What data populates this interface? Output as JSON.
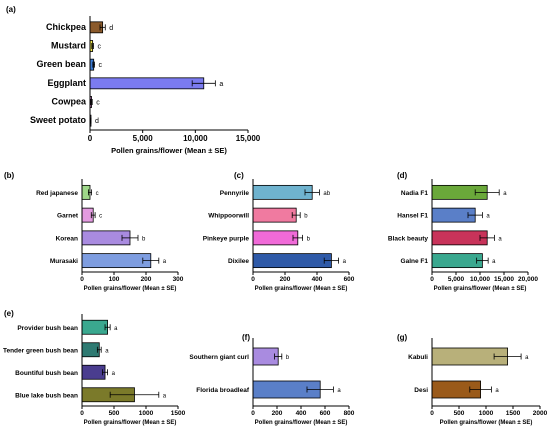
{
  "chart_data": [
    {
      "panel": "(a)",
      "type": "bar",
      "orientation": "horizontal",
      "categories": [
        "Chickpea",
        "Mustard",
        "Green bean",
        "Eggplant",
        "Cowpea",
        "Sweet potato"
      ],
      "values": [
        1200,
        250,
        350,
        10800,
        150,
        60
      ],
      "errors": [
        250,
        80,
        80,
        1100,
        60,
        30
      ],
      "sig": [
        "d",
        "c",
        "c",
        "a",
        "c",
        "d"
      ],
      "colors": [
        "#8b5a2b",
        "#f2e94e",
        "#3a7bd5",
        "#7b7bf0",
        "#d08acb",
        "#c9a9d6"
      ],
      "xlim": [
        0,
        15000
      ],
      "xticks": [
        "0",
        "5,000",
        "10,000",
        "15,000"
      ],
      "xtick_values": [
        0,
        5000,
        10000,
        15000
      ],
      "xlabel": "Pollen grains/flower (Mean ± SE)"
    },
    {
      "panel": "(b)",
      "type": "bar",
      "orientation": "horizontal",
      "categories": [
        "Red japanese",
        "Garnet",
        "Korean",
        "Murasaki"
      ],
      "values": [
        25,
        35,
        150,
        215
      ],
      "errors": [
        5,
        6,
        25,
        25
      ],
      "sig": [
        "c",
        "c",
        "b",
        "a"
      ],
      "colors": [
        "#9fd88a",
        "#e39be0",
        "#a98be0",
        "#7e9de0"
      ],
      "xlim": [
        0,
        300
      ],
      "xticks": [
        "0",
        "100",
        "200",
        "300"
      ],
      "xtick_values": [
        0,
        100,
        200,
        300
      ],
      "xlabel": "Pollen grains/flower (Mean ± SE)"
    },
    {
      "panel": "(c)",
      "type": "bar",
      "orientation": "horizontal",
      "categories": [
        "Pennyrile",
        "Whippoorwill",
        "Pinkeye purple",
        "Dixilee"
      ],
      "values": [
        370,
        270,
        280,
        490
      ],
      "errors": [
        45,
        25,
        30,
        45
      ],
      "sig": [
        "ab",
        "b",
        "b",
        "a"
      ],
      "colors": [
        "#6fb3cf",
        "#f07aa0",
        "#f06ad8",
        "#2f5aa8"
      ],
      "xlim": [
        0,
        600
      ],
      "xticks": [
        "0",
        "200",
        "400",
        "600"
      ],
      "xtick_values": [
        0,
        200,
        400,
        600
      ],
      "xlabel": "Pollen grains/flower (Mean ± SE)"
    },
    {
      "panel": "(d)",
      "type": "bar",
      "orientation": "horizontal",
      "categories": [
        "Nadia F1",
        "Hansel F1",
        "Black beauty",
        "Galne F1"
      ],
      "values": [
        11500,
        9000,
        11500,
        10500
      ],
      "errors": [
        2500,
        1500,
        1500,
        1200
      ],
      "sig": [
        "a",
        "a",
        "a",
        "a"
      ],
      "colors": [
        "#6aa83a",
        "#5a7fc8",
        "#c8335a",
        "#3aa88f"
      ],
      "xlim": [
        0,
        20000
      ],
      "xticks": [
        "0",
        "5,000",
        "10,000",
        "15,000",
        "20,000"
      ],
      "xtick_values": [
        0,
        5000,
        10000,
        15000,
        20000
      ],
      "xlabel": "Pollen grains/flower (Mean ± SE)"
    },
    {
      "panel": "(e)",
      "type": "bar",
      "orientation": "horizontal",
      "categories": [
        "Provider bush bean",
        "Tender green bush bean",
        "Bountiful bush bean",
        "Blue lake bush bean"
      ],
      "values": [
        400,
        270,
        360,
        820
      ],
      "errors": [
        40,
        30,
        40,
        380
      ],
      "sig": [
        "a",
        "a",
        "a",
        "a"
      ],
      "colors": [
        "#3aa88f",
        "#2e7a72",
        "#4a3d8f",
        "#7b7a2a"
      ],
      "xlim": [
        0,
        1500
      ],
      "xticks": [
        "0",
        "500",
        "1000",
        "1500"
      ],
      "xtick_values": [
        0,
        500,
        1000,
        1500
      ],
      "xlabel": "Pollen grains/flower (Mean ± SE)"
    },
    {
      "panel": "(f)",
      "type": "bar",
      "orientation": "horizontal",
      "categories": [
        "Southern giant curl",
        "Florida broadleaf"
      ],
      "values": [
        210,
        560
      ],
      "errors": [
        30,
        110
      ],
      "sig": [
        "b",
        "a"
      ],
      "colors": [
        "#a98be0",
        "#5a7fc8"
      ],
      "xlim": [
        0,
        800
      ],
      "xticks": [
        "0",
        "200",
        "400",
        "600",
        "800"
      ],
      "xtick_values": [
        0,
        200,
        400,
        600,
        800
      ],
      "xlabel": "Pollen grains/flower (Mean ± SE)"
    },
    {
      "panel": "(g)",
      "type": "bar",
      "orientation": "horizontal",
      "categories": [
        "Kabuli",
        "Desi"
      ],
      "values": [
        1400,
        900
      ],
      "errors": [
        250,
        200
      ],
      "sig": [
        "a",
        "a"
      ],
      "colors": [
        "#b8b07a",
        "#9a5a1a"
      ],
      "xlim": [
        0,
        2000
      ],
      "xticks": [
        "0",
        "500",
        "1000",
        "1500",
        "2000"
      ],
      "xtick_values": [
        0,
        500,
        1000,
        1500,
        2000
      ],
      "xlabel": "Pollen grains/flower (Mean ± SE)"
    }
  ]
}
